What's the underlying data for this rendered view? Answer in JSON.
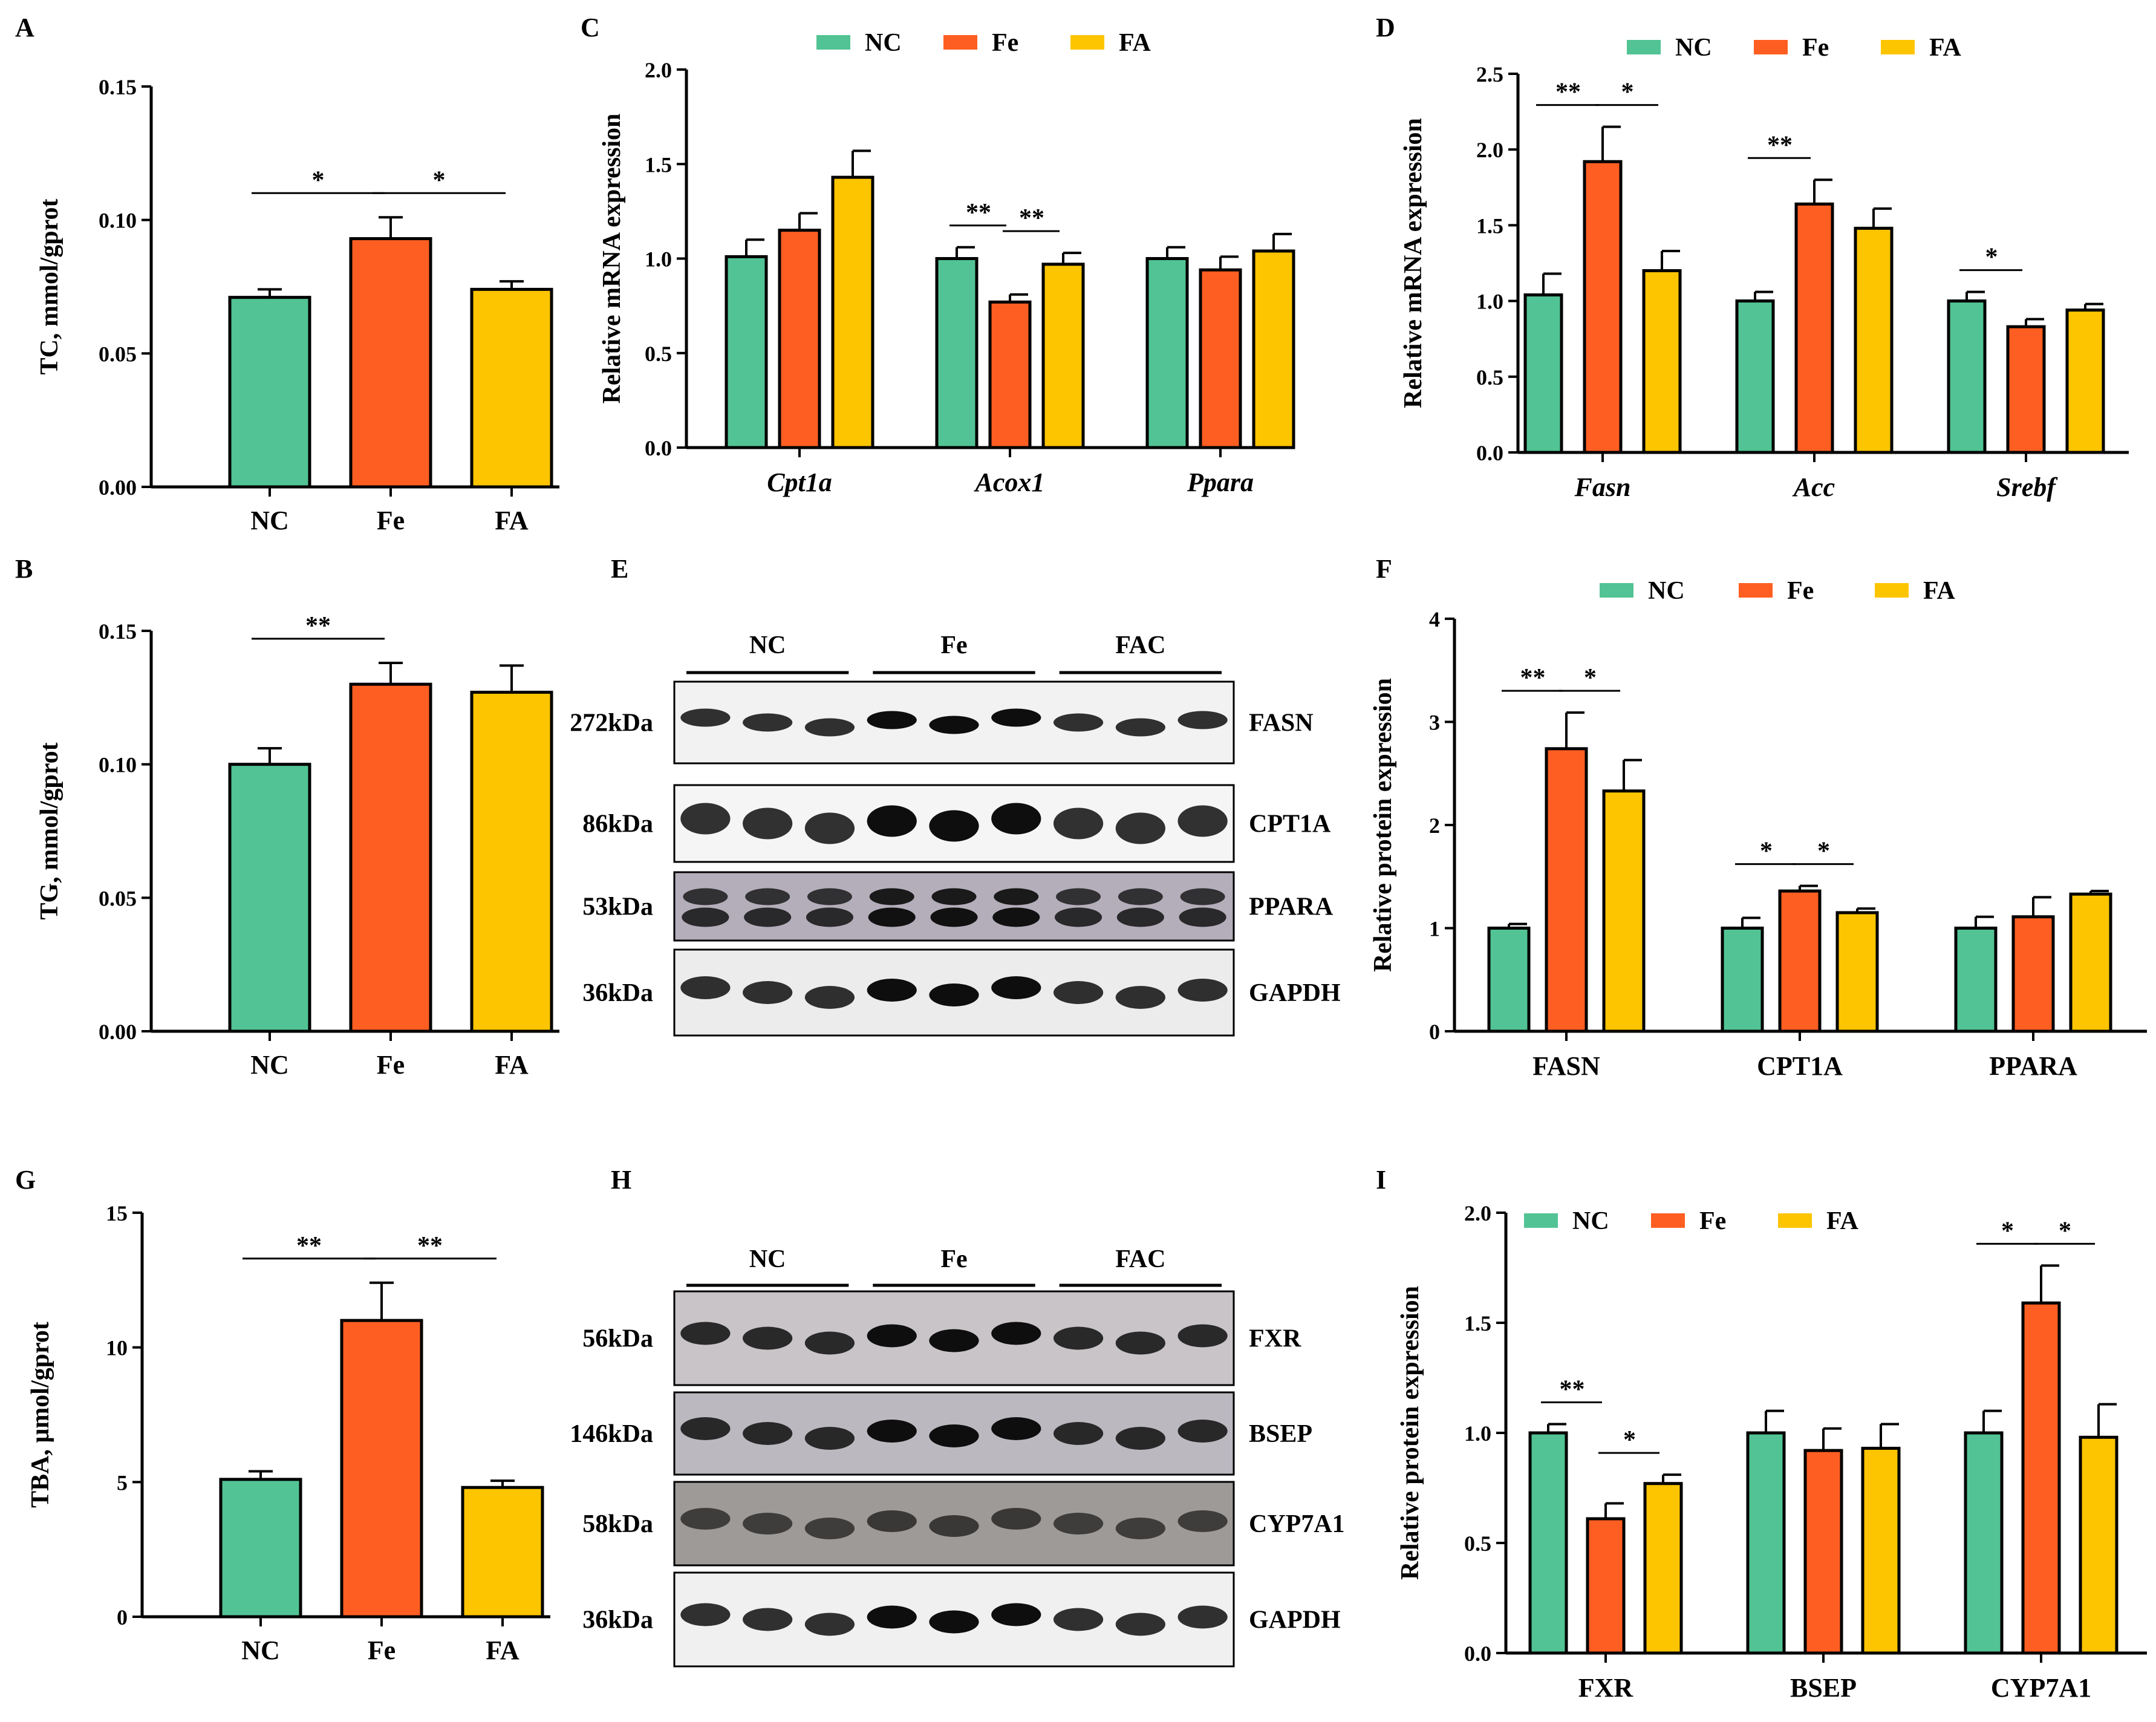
{
  "colors": {
    "NC": "#52C394",
    "Fe": "#FF5E22",
    "FA": "#FDC500",
    "axis": "#000000"
  },
  "chart_data": [
    {
      "id": "A",
      "type": "bar",
      "panel_label": "A",
      "ylabel": "TC, mmol/gprot",
      "yticks": [
        "0.00",
        "0.05",
        "0.10",
        "0.15"
      ],
      "ylim": [
        0,
        0.15
      ],
      "categories": [
        "NC",
        "Fe",
        "FA"
      ],
      "values": [
        0.071,
        0.093,
        0.074
      ],
      "errors": [
        0.003,
        0.008,
        0.003
      ],
      "significance": [
        {
          "from": 0,
          "to": 1,
          "label": "*"
        },
        {
          "from": 1,
          "to": 2,
          "label": "*"
        }
      ]
    },
    {
      "id": "B",
      "type": "bar",
      "panel_label": "B",
      "ylabel": "TG, mmol/gprot",
      "yticks": [
        "0.00",
        "0.05",
        "0.10",
        "0.15"
      ],
      "ylim": [
        0,
        0.15
      ],
      "categories": [
        "NC",
        "Fe",
        "FA"
      ],
      "values": [
        0.1,
        0.13,
        0.127
      ],
      "errors": [
        0.006,
        0.008,
        0.01
      ],
      "significance": [
        {
          "from": 0,
          "to": 1,
          "label": "**"
        }
      ]
    },
    {
      "id": "G",
      "type": "bar",
      "panel_label": "G",
      "ylabel": "TBA, μmol/gprot",
      "yticks": [
        "0",
        "5",
        "10",
        "15"
      ],
      "ylim": [
        0,
        15
      ],
      "categories": [
        "NC",
        "Fe",
        "FA"
      ],
      "values": [
        5.1,
        11.0,
        4.8
      ],
      "errors": [
        0.3,
        1.4,
        0.25
      ],
      "significance": [
        {
          "from": 0,
          "to": 1,
          "label": "**"
        },
        {
          "from": 1,
          "to": 2,
          "label": "**"
        }
      ]
    },
    {
      "id": "C",
      "type": "bar",
      "panel_label": "C",
      "ylabel": "Relative mRNA expression",
      "yticks": [
        "0.0",
        "0.5",
        "1.0",
        "1.5",
        "2.0"
      ],
      "ylim": [
        0,
        2.0
      ],
      "legend": [
        "NC",
        "Fe",
        "FA"
      ],
      "legend_position": "top",
      "categories": [
        "Cpt1a",
        "Acox1",
        "Ppara"
      ],
      "categories_italic": true,
      "series": [
        {
          "name": "NC",
          "values": [
            1.01,
            1.0,
            1.0
          ],
          "errors": [
            0.09,
            0.06,
            0.06
          ]
        },
        {
          "name": "Fe",
          "values": [
            1.15,
            0.77,
            0.94
          ],
          "errors": [
            0.09,
            0.04,
            0.07
          ]
        },
        {
          "name": "FA",
          "values": [
            1.43,
            0.97,
            1.04
          ],
          "errors": [
            0.14,
            0.06,
            0.09
          ]
        }
      ],
      "significance": [
        {
          "group": 1,
          "from": 0,
          "to": 1,
          "label": "**"
        },
        {
          "group": 1,
          "from": 1,
          "to": 2,
          "label": "**"
        }
      ]
    },
    {
      "id": "D",
      "type": "bar",
      "panel_label": "D",
      "ylabel": "Relative mRNA expression",
      "yticks": [
        "0.0",
        "0.5",
        "1.0",
        "1.5",
        "2.0",
        "2.5"
      ],
      "ylim": [
        0,
        2.5
      ],
      "legend": [
        "NC",
        "Fe",
        "FA"
      ],
      "legend_position": "top",
      "categories": [
        "Fasn",
        "Acc",
        "Srebf"
      ],
      "categories_italic": true,
      "series": [
        {
          "name": "NC",
          "values": [
            1.04,
            1.0,
            1.0
          ],
          "errors": [
            0.14,
            0.06,
            0.06
          ]
        },
        {
          "name": "Fe",
          "values": [
            1.92,
            1.64,
            0.83
          ],
          "errors": [
            0.23,
            0.16,
            0.05
          ]
        },
        {
          "name": "FA",
          "values": [
            1.2,
            1.48,
            0.94
          ],
          "errors": [
            0.13,
            0.13,
            0.04
          ]
        }
      ],
      "significance": [
        {
          "group": 0,
          "from": 0,
          "to": 1,
          "label": "**"
        },
        {
          "group": 0,
          "from": 1,
          "to": 2,
          "label": "*"
        },
        {
          "group": 1,
          "from": 0,
          "to": 1,
          "label": "**"
        },
        {
          "group": 2,
          "from": 0,
          "to": 1,
          "label": "*"
        }
      ]
    },
    {
      "id": "F",
      "type": "bar",
      "panel_label": "F",
      "ylabel": "Relative protein expression",
      "yticks": [
        "0",
        "1",
        "2",
        "3",
        "4"
      ],
      "ylim": [
        0,
        4
      ],
      "legend": [
        "NC",
        "Fe",
        "FA"
      ],
      "legend_position": "top",
      "categories": [
        "FASN",
        "CPT1A",
        "PPARA"
      ],
      "categories_italic": false,
      "series": [
        {
          "name": "NC",
          "values": [
            1.0,
            1.0,
            1.0
          ],
          "errors": [
            0.04,
            0.1,
            0.11
          ]
        },
        {
          "name": "Fe",
          "values": [
            2.74,
            1.36,
            1.11
          ],
          "errors": [
            0.35,
            0.05,
            0.19
          ]
        },
        {
          "name": "FA",
          "values": [
            2.33,
            1.15,
            1.33
          ],
          "errors": [
            0.3,
            0.04,
            0.03
          ]
        }
      ],
      "significance": [
        {
          "group": 0,
          "from": 0,
          "to": 1,
          "label": "**"
        },
        {
          "group": 0,
          "from": 1,
          "to": 2,
          "label": "*"
        },
        {
          "group": 1,
          "from": 0,
          "to": 1,
          "label": "*"
        },
        {
          "group": 1,
          "from": 1,
          "to": 2,
          "label": "*"
        }
      ]
    },
    {
      "id": "I",
      "type": "bar",
      "panel_label": "I",
      "ylabel": "Relative protein expression",
      "yticks": [
        "0.0",
        "0.5",
        "1.0",
        "1.5",
        "2.0"
      ],
      "ylim": [
        0,
        2.0
      ],
      "legend": [
        "NC",
        "Fe",
        "FA"
      ],
      "legend_position": "top-left inside",
      "categories": [
        "FXR",
        "BSEP",
        "CYP7A1"
      ],
      "categories_italic": false,
      "series": [
        {
          "name": "NC",
          "values": [
            1.0,
            1.0,
            1.0
          ],
          "errors": [
            0.04,
            0.1,
            0.1
          ]
        },
        {
          "name": "Fe",
          "values": [
            0.61,
            0.92,
            1.59
          ],
          "errors": [
            0.07,
            0.1,
            0.17
          ]
        },
        {
          "name": "FA",
          "values": [
            0.77,
            0.93,
            0.98
          ],
          "errors": [
            0.04,
            0.11,
            0.15
          ]
        }
      ],
      "significance": [
        {
          "group": 0,
          "from": 0,
          "to": 1,
          "label": "**"
        },
        {
          "group": 0,
          "from": 1,
          "to": 2,
          "label": "*"
        },
        {
          "group": 2,
          "from": 0,
          "to": 1,
          "label": "*"
        },
        {
          "group": 2,
          "from": 1,
          "to": 2,
          "label": "*"
        }
      ]
    }
  ],
  "blots": [
    {
      "id": "E",
      "panel_label": "E",
      "groups": [
        "NC",
        "Fe",
        "FAC"
      ],
      "rows": [
        {
          "kda": "272kDa",
          "protein": "FASN",
          "band": "thin",
          "bg": "#f2f2f2"
        },
        {
          "kda": "86kDa",
          "protein": "CPT1A",
          "band": "thick",
          "bg": "#f5f5f5"
        },
        {
          "kda": "53kDa",
          "protein": "PPARA",
          "band": "double",
          "bg": "#b4aebb"
        },
        {
          "kda": "36kDa",
          "protein": "GAPDH",
          "band": "medium",
          "bg": "#ececec"
        }
      ]
    },
    {
      "id": "H",
      "panel_label": "H",
      "groups": [
        "NC",
        "Fe",
        "FAC"
      ],
      "rows": [
        {
          "kda": "56kDa",
          "protein": "FXR",
          "band": "medium",
          "bg": "#c8c4c8"
        },
        {
          "kda": "146kDa",
          "protein": "BSEP",
          "band": "medium",
          "bg": "#bcb8c0"
        },
        {
          "kda": "58kDa",
          "protein": "CYP7A1",
          "band": "faint",
          "bg": "#9d9a98"
        },
        {
          "kda": "36kDa",
          "protein": "GAPDH",
          "band": "medium",
          "bg": "#f0f0f0"
        }
      ]
    }
  ]
}
